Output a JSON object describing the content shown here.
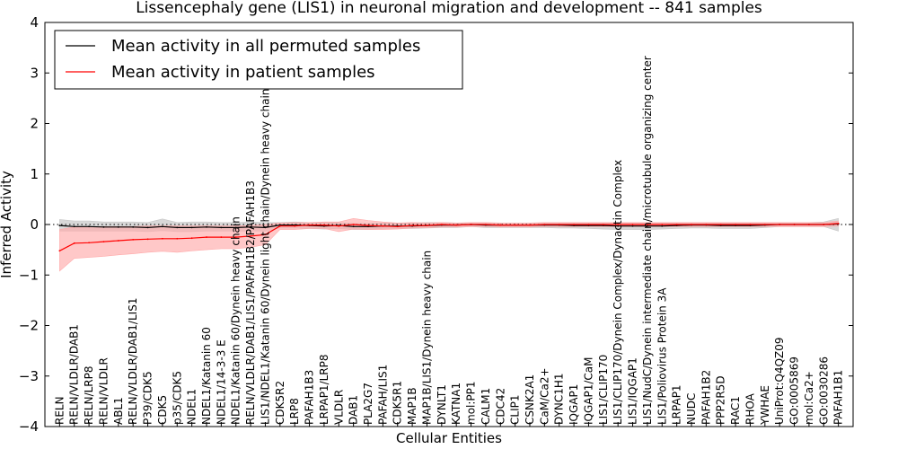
{
  "chart_data": {
    "type": "line",
    "title": "Lissencephaly gene (LIS1) in neuronal migration and development -- 841 samples",
    "xlabel": "Cellular Entities",
    "ylabel": "Inferred Activity",
    "ylim": [
      -4,
      4
    ],
    "yticks": [
      -4,
      -3,
      -2,
      -1,
      0,
      1,
      2,
      3,
      4
    ],
    "ytick_labels": [
      "−4",
      "−3",
      "−2",
      "−1",
      "0",
      "1",
      "2",
      "3",
      "4"
    ],
    "grid": false,
    "legend_position": "top-left",
    "reference_line": 0,
    "categories": [
      "RELN",
      "RELN/VLDLR/DAB1",
      "RELN/LRP8",
      "RELN/VLDLR",
      "ABL1",
      "RELN/VLDLR/DAB1/LIS1",
      "P39/CDK5",
      "CDK5",
      "p35/CDK5",
      "NDEL1",
      "NDEL1/Katanin 60",
      "NDEL1/14-3-3 E",
      "NDEL1/Katanin 60/Dynein heavy chain",
      "RELN/VLDLR/DAB1/LIS1/PAFAH1B2/PAFAH1B3",
      "LIS1/NDEL1/Katanin 60/Dynein light chain/Dynein heavy chain",
      "CDK5R2",
      "LRP8",
      "PAFAH1B3",
      "LRPAP1/LRP8",
      "VLDLR",
      "DAB1",
      "PLA2G7",
      "PAFAH/LIS1",
      "CDK5R1",
      "MAP1B",
      "MAP1B/LIS1/Dynein heavy chain",
      "DYNLT1",
      "KATNA1",
      "mol:PP1",
      "CALM1",
      "CDC42",
      "CLIP1",
      "CSNK2A1",
      "CaM/Ca2+",
      "DYNC1H1",
      "IQGAP1",
      "IQGAP1/CaM",
      "LIS1/CLIP170",
      "LIS1/CLIP170/Dynein Complex/Dynactin Complex",
      "LIS1/IQGAP1",
      "LIS1/NudC/Dynein intermediate chain/microtubule organizing center",
      "LIS1/Poliovirus Protein 3A",
      "LRPAP1",
      "NUDC",
      "PAFAH1B2",
      "PPP2R5D",
      "RAC1",
      "RHOA",
      "YWHAE",
      "UniProt:Q4QZ09",
      "GO:0005869",
      "mol:Ca2+",
      "GO:0030286",
      "PAFAH1B1"
    ],
    "series": [
      {
        "name": "Mean activity in all permuted samples",
        "color": "#000000",
        "band_color": "#c8c8c8",
        "values": [
          -0.02,
          -0.04,
          -0.04,
          -0.05,
          -0.05,
          -0.05,
          -0.06,
          -0.04,
          -0.06,
          -0.06,
          -0.05,
          -0.06,
          -0.06,
          -0.05,
          -0.06,
          -0.01,
          -0.01,
          -0.02,
          -0.03,
          -0.02,
          -0.04,
          -0.04,
          -0.03,
          -0.03,
          -0.03,
          -0.02,
          -0.01,
          -0.01,
          0.0,
          -0.01,
          -0.01,
          -0.01,
          -0.01,
          -0.01,
          -0.01,
          -0.02,
          -0.02,
          -0.02,
          -0.03,
          -0.03,
          -0.03,
          -0.03,
          -0.02,
          -0.01,
          -0.01,
          -0.02,
          -0.02,
          -0.02,
          -0.01,
          0.0,
          0.0,
          0.0,
          0.0,
          0.01
        ],
        "lower": [
          -0.13,
          -0.13,
          -0.13,
          -0.13,
          -0.13,
          -0.13,
          -0.14,
          -0.12,
          -0.14,
          -0.14,
          -0.13,
          -0.13,
          -0.13,
          -0.13,
          -0.13,
          -0.07,
          -0.07,
          -0.08,
          -0.09,
          -0.08,
          -0.1,
          -0.1,
          -0.08,
          -0.08,
          -0.08,
          -0.07,
          -0.06,
          -0.06,
          -0.04,
          -0.06,
          -0.06,
          -0.06,
          -0.06,
          -0.06,
          -0.07,
          -0.07,
          -0.08,
          -0.09,
          -0.1,
          -0.1,
          -0.1,
          -0.09,
          -0.08,
          -0.07,
          -0.07,
          -0.08,
          -0.08,
          -0.08,
          -0.06,
          -0.04,
          -0.04,
          -0.04,
          -0.04,
          -0.13
        ],
        "upper": [
          0.1,
          0.07,
          0.07,
          0.05,
          0.05,
          0.05,
          0.04,
          0.11,
          0.04,
          0.05,
          0.05,
          0.04,
          0.04,
          0.05,
          0.04,
          0.04,
          0.05,
          0.04,
          0.04,
          0.04,
          0.02,
          0.02,
          0.03,
          0.03,
          0.03,
          0.04,
          0.04,
          0.03,
          0.03,
          0.03,
          0.03,
          0.03,
          0.03,
          0.03,
          0.04,
          0.04,
          0.04,
          0.04,
          0.04,
          0.04,
          0.04,
          0.04,
          0.04,
          0.04,
          0.04,
          0.03,
          0.03,
          0.03,
          0.04,
          0.04,
          0.04,
          0.04,
          0.05,
          0.12
        ]
      },
      {
        "name": "Mean activity in patient samples",
        "color": "#ff0000",
        "band_color": "#ffaaaa",
        "values": [
          -0.52,
          -0.37,
          -0.36,
          -0.34,
          -0.32,
          -0.3,
          -0.29,
          -0.28,
          -0.28,
          -0.27,
          -0.25,
          -0.25,
          -0.25,
          -0.23,
          -0.2,
          -0.03,
          -0.03,
          -0.01,
          -0.01,
          -0.03,
          0.0,
          -0.02,
          -0.03,
          -0.04,
          -0.02,
          -0.02,
          0.0,
          -0.01,
          0.0,
          0.0,
          -0.01,
          -0.01,
          -0.01,
          0.0,
          0.0,
          0.0,
          0.0,
          0.0,
          0.0,
          0.0,
          0.0,
          0.0,
          0.0,
          0.0,
          0.0,
          0.0,
          0.0,
          0.0,
          0.0,
          0.0,
          0.0,
          0.0,
          0.0,
          0.02
        ],
        "lower": [
          -0.92,
          -0.67,
          -0.65,
          -0.63,
          -0.6,
          -0.58,
          -0.55,
          -0.53,
          -0.55,
          -0.52,
          -0.5,
          -0.48,
          -0.48,
          -0.45,
          -0.4,
          -0.1,
          -0.1,
          -0.08,
          -0.08,
          -0.14,
          -0.09,
          -0.1,
          -0.1,
          -0.09,
          -0.07,
          -0.06,
          -0.05,
          -0.05,
          -0.04,
          -0.04,
          -0.05,
          -0.05,
          -0.05,
          -0.04,
          -0.04,
          -0.04,
          -0.04,
          -0.04,
          -0.04,
          -0.04,
          -0.04,
          -0.04,
          -0.04,
          -0.04,
          -0.04,
          -0.04,
          -0.04,
          -0.04,
          -0.04,
          -0.04,
          -0.04,
          -0.04,
          -0.04,
          -0.03
        ],
        "upper": [
          -0.1,
          -0.05,
          -0.05,
          -0.04,
          -0.04,
          -0.04,
          -0.03,
          -0.03,
          -0.03,
          -0.03,
          -0.03,
          -0.03,
          -0.03,
          -0.02,
          0.0,
          0.03,
          0.04,
          0.04,
          0.05,
          0.05,
          0.12,
          0.08,
          0.05,
          0.03,
          0.04,
          0.03,
          0.04,
          0.03,
          0.04,
          0.04,
          0.03,
          0.03,
          0.03,
          0.04,
          0.04,
          0.04,
          0.04,
          0.04,
          0.04,
          0.04,
          0.04,
          0.04,
          0.04,
          0.04,
          0.04,
          0.04,
          0.04,
          0.04,
          0.04,
          0.04,
          0.04,
          0.04,
          0.04,
          0.07
        ]
      }
    ]
  }
}
